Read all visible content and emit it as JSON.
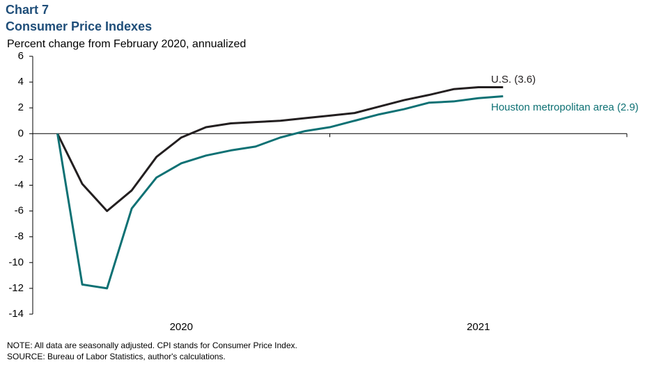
{
  "chart_data": {
    "type": "line",
    "title": "Chart 7",
    "subtitle": "Consumer Price Indexes",
    "y_label": "Percent change from February 2020, annualized",
    "notes": [
      "NOTE: All data are seasonally adjusted. CPI stands for Consumer Price Index.",
      "SOURCE: Bureau of Labor Statistics, author's calculations."
    ],
    "x": [
      2020.0833,
      2020.1667,
      2020.25,
      2020.3333,
      2020.4167,
      2020.5,
      2020.5833,
      2020.6667,
      2020.75,
      2020.8333,
      2020.9167,
      2021,
      2021.0833,
      2021.1667,
      2021.25,
      2021.3333,
      2021.4167,
      2021.5,
      2021.5833
    ],
    "xlim": [
      2020,
      2022
    ],
    "xticks": [
      2020,
      2021,
      2022
    ],
    "xtick_labels": [
      {
        "value": 2020.5,
        "label": "2020"
      },
      {
        "value": 2021.5,
        "label": "2021"
      }
    ],
    "ylim": [
      -14,
      6
    ],
    "yticks": [
      -14,
      -12,
      -10,
      -8,
      -6,
      -4,
      -2,
      0,
      2,
      4,
      6
    ],
    "series": [
      {
        "name": "U.S. (3.6)",
        "color": "#231f20",
        "values": [
          0,
          -3.9,
          -6.0,
          -4.4,
          -1.8,
          -0.3,
          0.5,
          0.8,
          0.9,
          1.0,
          1.2,
          1.4,
          1.6,
          2.1,
          2.6,
          3.0,
          3.45,
          3.6,
          3.6
        ]
      },
      {
        "name": "Houston metropolitan area (2.9)",
        "color": "#0e7174",
        "values": [
          0,
          -11.7,
          -12.0,
          -5.8,
          -3.4,
          -2.3,
          -1.7,
          -1.3,
          -1.0,
          -0.3,
          0.2,
          0.5,
          1.0,
          1.5,
          1.9,
          2.4,
          2.5,
          2.75,
          2.9
        ]
      }
    ]
  }
}
